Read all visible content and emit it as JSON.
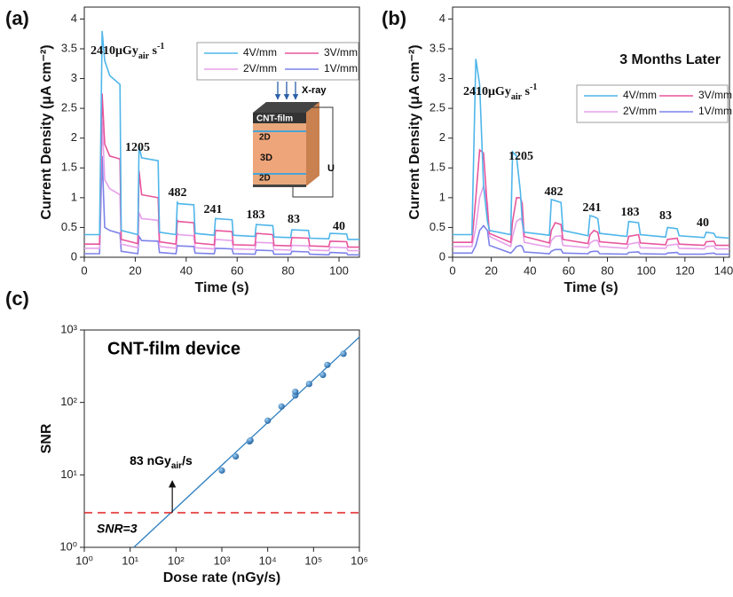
{
  "chart_data": [
    {
      "type": "line",
      "panel": "(a)",
      "x_label": "Time (s)",
      "y_label": "Current Density (μA cm⁻²)",
      "xlim": [
        0,
        108
      ],
      "xticks": [
        0,
        20,
        40,
        60,
        80,
        100
      ],
      "ylim": [
        0,
        4.2
      ],
      "yticks": [
        0,
        0.5,
        1,
        1.5,
        2,
        2.5,
        3,
        3.5,
        4
      ],
      "x": [
        0,
        6,
        7,
        8,
        10,
        14,
        14.5,
        21,
        21.5,
        22.5,
        29,
        29.5,
        36,
        36.5,
        37,
        43,
        43.5,
        51,
        51.5,
        58,
        58.5,
        67,
        67.5,
        74,
        74.5,
        81,
        81.5,
        88,
        88.5,
        96,
        96.5,
        103,
        103.5,
        108
      ],
      "series": [
        {
          "name": "4V/mm",
          "color": "#4fb6ea",
          "values": [
            0.38,
            0.38,
            3.8,
            3.3,
            3.05,
            2.9,
            0.45,
            0.38,
            1.87,
            1.67,
            1.62,
            0.42,
            0.38,
            0.92,
            0.9,
            0.88,
            0.4,
            0.37,
            0.65,
            0.63,
            0.37,
            0.35,
            0.55,
            0.53,
            0.34,
            0.33,
            0.46,
            0.45,
            0.32,
            0.31,
            0.4,
            0.39,
            0.3,
            0.3
          ]
        },
        {
          "name": "3V/mm",
          "color": "#e8559c",
          "values": [
            0.22,
            0.22,
            2.75,
            1.9,
            1.7,
            1.65,
            0.3,
            0.23,
            1.45,
            1.05,
            1.0,
            0.26,
            0.22,
            0.62,
            0.6,
            0.58,
            0.24,
            0.21,
            0.45,
            0.43,
            0.21,
            0.2,
            0.4,
            0.38,
            0.2,
            0.19,
            0.33,
            0.32,
            0.19,
            0.18,
            0.27,
            0.26,
            0.17,
            0.17
          ]
        },
        {
          "name": "2V/mm",
          "color": "#e6a0ea",
          "values": [
            0.15,
            0.15,
            2.3,
            1.3,
            1.15,
            1.05,
            0.22,
            0.16,
            0.75,
            0.65,
            0.62,
            0.18,
            0.15,
            0.4,
            0.38,
            0.36,
            0.16,
            0.14,
            0.3,
            0.28,
            0.14,
            0.13,
            0.25,
            0.24,
            0.13,
            0.12,
            0.2,
            0.19,
            0.12,
            0.11,
            0.17,
            0.16,
            0.11,
            0.11
          ]
        },
        {
          "name": "1V/mm",
          "color": "#7d82ea",
          "values": [
            0.06,
            0.06,
            1.7,
            0.5,
            0.45,
            0.4,
            0.1,
            0.06,
            0.35,
            0.28,
            0.27,
            0.08,
            0.06,
            0.2,
            0.19,
            0.18,
            0.07,
            0.06,
            0.15,
            0.14,
            0.06,
            0.05,
            0.12,
            0.11,
            0.05,
            0.05,
            0.1,
            0.09,
            0.05,
            0.04,
            0.08,
            0.07,
            0.04,
            0.04
          ]
        }
      ],
      "dose_label": {
        "text": "2410μGy",
        "sub": "air",
        "unit": " s",
        "sup": "-1"
      },
      "annotations": [
        "1205",
        "482",
        "241",
        "183",
        "83",
        "40"
      ],
      "inset_labels": {
        "xray": "X-ray",
        "top": "CNT-film",
        "layer1": "2D",
        "layer2": "3D",
        "layer3": "2D",
        "bias": "U"
      }
    },
    {
      "type": "line",
      "panel": "(b)",
      "x_label": "Time (s)",
      "y_label": "Current Density (μA cm⁻²)",
      "xlim": [
        0,
        143
      ],
      "xticks": [
        0,
        20,
        40,
        60,
        80,
        100,
        120,
        140
      ],
      "ylim": [
        0,
        4.2
      ],
      "yticks": [
        0,
        0.5,
        1,
        1.5,
        2,
        2.5,
        3,
        3.5,
        4
      ],
      "x": [
        0,
        10,
        12,
        14,
        16,
        18,
        19,
        30,
        31,
        33,
        35,
        36,
        37,
        50,
        51,
        53,
        56,
        57,
        70,
        71,
        73,
        75,
        76,
        90,
        91,
        96,
        97,
        110,
        111,
        116,
        117,
        130,
        131,
        135,
        136,
        143
      ],
      "series": [
        {
          "name": "4V/mm",
          "color": "#4fb6ea",
          "values": [
            0.38,
            0.38,
            3.33,
            2.9,
            1.2,
            0.6,
            0.45,
            0.38,
            1.77,
            1.7,
            1.1,
            0.6,
            0.42,
            0.37,
            0.97,
            0.95,
            0.92,
            0.45,
            0.36,
            0.7,
            0.68,
            0.65,
            0.4,
            0.35,
            0.6,
            0.58,
            0.38,
            0.34,
            0.5,
            0.48,
            0.36,
            0.33,
            0.42,
            0.4,
            0.34,
            0.32
          ]
        },
        {
          "name": "3V/mm",
          "color": "#e8559c",
          "values": [
            0.25,
            0.25,
            1.0,
            1.8,
            1.75,
            0.8,
            0.4,
            0.25,
            0.6,
            1.0,
            1.0,
            0.9,
            0.35,
            0.24,
            0.45,
            0.58,
            0.55,
            0.3,
            0.23,
            0.38,
            0.45,
            0.42,
            0.26,
            0.22,
            0.35,
            0.38,
            0.24,
            0.21,
            0.3,
            0.32,
            0.22,
            0.2,
            0.26,
            0.27,
            0.2,
            0.2
          ]
        },
        {
          "name": "2V/mm",
          "color": "#e6a0ea",
          "values": [
            0.18,
            0.18,
            0.5,
            1.0,
            1.2,
            0.9,
            0.35,
            0.18,
            0.35,
            0.6,
            0.65,
            0.6,
            0.25,
            0.17,
            0.28,
            0.35,
            0.36,
            0.2,
            0.16,
            0.24,
            0.28,
            0.28,
            0.18,
            0.15,
            0.22,
            0.25,
            0.16,
            0.15,
            0.2,
            0.22,
            0.15,
            0.14,
            0.18,
            0.19,
            0.14,
            0.14
          ]
        },
        {
          "name": "1V/mm",
          "color": "#7d82ea",
          "values": [
            0.07,
            0.07,
            0.2,
            0.45,
            0.53,
            0.45,
            0.2,
            0.07,
            0.1,
            0.18,
            0.2,
            0.18,
            0.09,
            0.06,
            0.1,
            0.13,
            0.13,
            0.07,
            0.06,
            0.09,
            0.1,
            0.1,
            0.06,
            0.05,
            0.08,
            0.09,
            0.06,
            0.05,
            0.07,
            0.08,
            0.05,
            0.05,
            0.06,
            0.07,
            0.05,
            0.05
          ]
        }
      ],
      "dose_label": {
        "text": "2410μGy",
        "sub": "air",
        "unit": " s",
        "sup": "-1"
      },
      "subtitle": "3 Months Later",
      "annotations": [
        "1205",
        "482",
        "241",
        "183",
        "83",
        "40"
      ]
    },
    {
      "type": "scatter",
      "panel": "(c)",
      "title": "CNT-film device",
      "x_label": "Dose rate (nGy/s)",
      "y_label": "SNR",
      "log_x": true,
      "log_y": true,
      "xlim": [
        1,
        1000000
      ],
      "xticks": [
        {
          "value": 1,
          "label": "10⁰"
        },
        {
          "value": 10,
          "label": "10¹"
        },
        {
          "value": 100,
          "label": "10²"
        },
        {
          "value": 1000,
          "label": "10³"
        },
        {
          "value": 10000,
          "label": "10⁴"
        },
        {
          "value": 100000,
          "label": "10⁵"
        },
        {
          "value": 1000000,
          "label": "10⁶"
        }
      ],
      "ylim": [
        1,
        1000
      ],
      "yticks": [
        {
          "value": 1,
          "label": "10⁰"
        },
        {
          "value": 10,
          "label": "10¹"
        },
        {
          "value": 100,
          "label": "10²"
        },
        {
          "value": 1000,
          "label": "10³"
        }
      ],
      "color": "#2f7fc0",
      "x": [
        1000,
        2000,
        4000,
        4200,
        10000,
        20000,
        40000,
        40000,
        80000,
        160000,
        200000,
        450000
      ],
      "values": [
        11.5,
        18,
        29,
        30,
        56,
        88,
        125,
        140,
        180,
        240,
        330,
        470
      ],
      "fit": {
        "x": [
          12,
          1000000
        ],
        "values": [
          1,
          800
        ]
      },
      "threshold": 3,
      "threshold_label": "SNR=3",
      "arrow_x": 83,
      "limit_label": {
        "text": "83 nGy",
        "sub": "air",
        "unit": "/s"
      }
    }
  ]
}
